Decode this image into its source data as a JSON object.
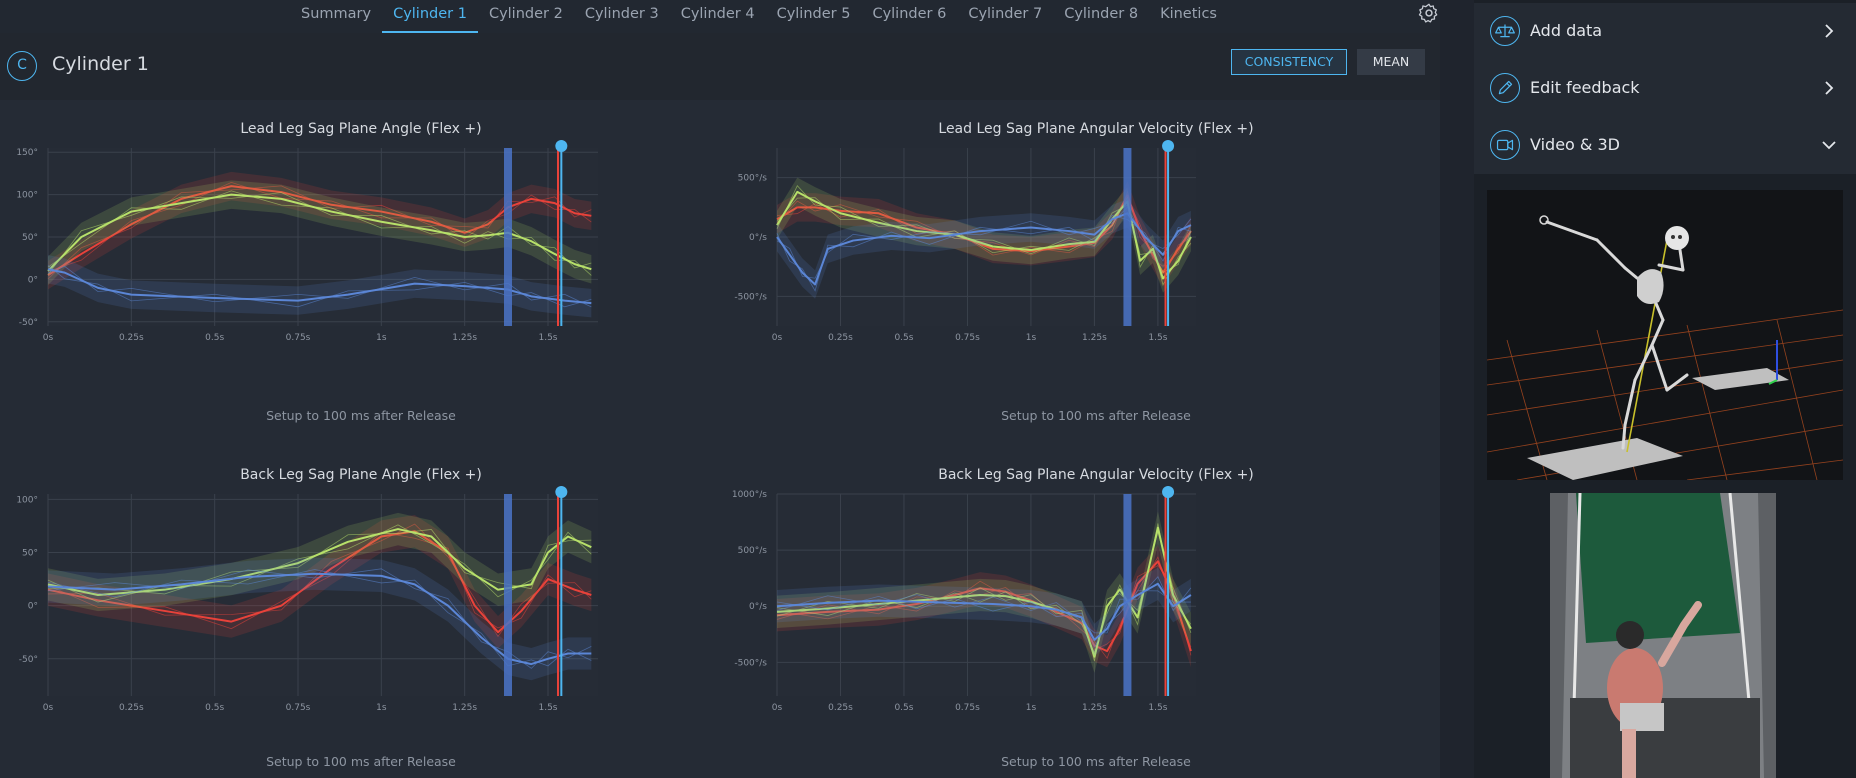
{
  "nav": {
    "tabs": [
      "Summary",
      "Cylinder 1",
      "Cylinder 2",
      "Cylinder 3",
      "Cylinder 4",
      "Cylinder 5",
      "Cylinder 6",
      "Cylinder 7",
      "Cylinder 8",
      "Kinetics"
    ],
    "active_tab": "Cylinder 1"
  },
  "header": {
    "badge": "C",
    "title": "Cylinder 1",
    "consistency_label": "CONSISTENCY",
    "mean_label": "MEAN"
  },
  "colors": {
    "accent": "#4eb6f0",
    "series_red": "#e8423a",
    "series_green": "#b7e06a",
    "series_blue": "#5b86d6"
  },
  "chart_data": [
    {
      "type": "line",
      "title": "Lead Leg Sag Plane Angle (Flex +)",
      "xlabel": "Setup to 100 ms after Release",
      "x_ticks": [
        "0s",
        "0.25s",
        "0.5s",
        "0.75s",
        "1s",
        "1.25s",
        "1.5s"
      ],
      "y_ticks": [
        "150°",
        "100°",
        "50°",
        "0°",
        "-50°"
      ],
      "xlim": [
        0,
        1.65
      ],
      "ylim": [
        -55,
        155
      ],
      "markers": [
        1.38,
        1.53,
        1.54
      ],
      "series": [
        {
          "color": "red",
          "x": [
            0,
            0.1,
            0.25,
            0.4,
            0.55,
            0.7,
            0.85,
            1.0,
            1.15,
            1.25,
            1.32,
            1.38,
            1.45,
            1.52,
            1.58,
            1.63
          ],
          "y": [
            5,
            30,
            65,
            95,
            110,
            103,
            88,
            80,
            68,
            55,
            65,
            85,
            95,
            90,
            78,
            75
          ]
        },
        {
          "color": "green",
          "x": [
            0,
            0.1,
            0.25,
            0.4,
            0.55,
            0.7,
            0.85,
            1.0,
            1.15,
            1.25,
            1.32,
            1.38,
            1.45,
            1.52,
            1.58,
            1.63
          ],
          "y": [
            10,
            50,
            80,
            90,
            100,
            95,
            80,
            68,
            58,
            50,
            52,
            55,
            45,
            30,
            18,
            12
          ]
        },
        {
          "color": "blue",
          "x": [
            0,
            0.05,
            0.15,
            0.25,
            0.5,
            0.75,
            0.9,
            1.1,
            1.25,
            1.38,
            1.45,
            1.55,
            1.63
          ],
          "y": [
            12,
            8,
            -10,
            -18,
            -22,
            -25,
            -18,
            -5,
            -8,
            -12,
            -20,
            -25,
            -28
          ]
        }
      ]
    },
    {
      "type": "line",
      "title": "Lead Leg Sag Plane Angular Velocity (Flex +)",
      "xlabel": "Setup to 100 ms after Release",
      "x_ticks": [
        "0s",
        "0.25s",
        "0.5s",
        "0.75s",
        "1s",
        "1.25s",
        "1.5s"
      ],
      "y_ticks": [
        "500°/s",
        "0°/s",
        "-500°/s"
      ],
      "xlim": [
        0,
        1.65
      ],
      "ylim": [
        -750,
        750
      ],
      "markers": [
        1.38,
        1.53,
        1.54
      ],
      "series": [
        {
          "color": "red",
          "x": [
            0,
            0.08,
            0.15,
            0.25,
            0.4,
            0.55,
            0.7,
            0.85,
            1.0,
            1.15,
            1.25,
            1.32,
            1.38,
            1.43,
            1.48,
            1.52,
            1.58,
            1.63
          ],
          "y": [
            150,
            250,
            250,
            220,
            200,
            80,
            20,
            -100,
            -120,
            -80,
            -50,
            100,
            350,
            50,
            -150,
            -300,
            -100,
            50
          ]
        },
        {
          "color": "green",
          "x": [
            0,
            0.08,
            0.15,
            0.25,
            0.4,
            0.55,
            0.7,
            0.85,
            1.0,
            1.15,
            1.25,
            1.32,
            1.38,
            1.43,
            1.48,
            1.52,
            1.58,
            1.63
          ],
          "y": [
            100,
            380,
            300,
            200,
            120,
            50,
            20,
            -80,
            -110,
            -60,
            -40,
            150,
            300,
            -200,
            -100,
            -350,
            -200,
            0
          ]
        },
        {
          "color": "blue",
          "x": [
            0,
            0.05,
            0.1,
            0.15,
            0.2,
            0.3,
            0.45,
            0.6,
            0.8,
            1.0,
            1.15,
            1.25,
            1.32,
            1.38,
            1.45,
            1.52,
            1.58,
            1.63
          ],
          "y": [
            0,
            -150,
            -300,
            -400,
            -100,
            -30,
            10,
            -10,
            50,
            80,
            50,
            20,
            150,
            200,
            0,
            -150,
            50,
            100
          ]
        }
      ]
    },
    {
      "type": "line",
      "title": "Back Leg Sag Plane Angle (Flex +)",
      "xlabel": "Setup to 100 ms after Release",
      "x_ticks": [
        "0s",
        "0.25s",
        "0.5s",
        "0.75s",
        "1s",
        "1.25s",
        "1.5s"
      ],
      "y_ticks": [
        "100°",
        "50°",
        "0°",
        "-50°"
      ],
      "xlim": [
        0,
        1.65
      ],
      "ylim": [
        -85,
        105
      ],
      "markers": [
        1.38,
        1.53,
        1.54
      ],
      "series": [
        {
          "color": "red",
          "x": [
            0,
            0.15,
            0.35,
            0.55,
            0.7,
            0.85,
            1.0,
            1.1,
            1.2,
            1.28,
            1.35,
            1.42,
            1.5,
            1.58,
            1.63
          ],
          "y": [
            15,
            5,
            -5,
            -15,
            0,
            35,
            65,
            70,
            50,
            0,
            -25,
            -5,
            25,
            15,
            10
          ]
        },
        {
          "color": "green",
          "x": [
            0,
            0.15,
            0.35,
            0.55,
            0.75,
            0.9,
            1.05,
            1.15,
            1.25,
            1.35,
            1.45,
            1.5,
            1.56,
            1.63
          ],
          "y": [
            20,
            10,
            15,
            25,
            40,
            60,
            72,
            65,
            35,
            15,
            20,
            50,
            65,
            55
          ]
        },
        {
          "color": "blue",
          "x": [
            0,
            0.2,
            0.4,
            0.6,
            0.8,
            1.0,
            1.1,
            1.2,
            1.3,
            1.38,
            1.45,
            1.5,
            1.56,
            1.63
          ],
          "y": [
            18,
            15,
            20,
            27,
            30,
            28,
            20,
            0,
            -30,
            -50,
            -55,
            -50,
            -45,
            -45
          ]
        }
      ]
    },
    {
      "type": "line",
      "title": "Back Leg Sag Plane Angular Velocity (Flex +)",
      "xlabel": "Setup to 100 ms after Release",
      "x_ticks": [
        "0s",
        "0.25s",
        "0.5s",
        "0.75s",
        "1s",
        "1.25s",
        "1.5s"
      ],
      "y_ticks": [
        "1000°/s",
        "500°/s",
        "0°/s",
        "-500°/s"
      ],
      "xlim": [
        0,
        1.65
      ],
      "ylim": [
        -800,
        1000
      ],
      "markers": [
        1.38,
        1.53,
        1.54
      ],
      "series": [
        {
          "color": "red",
          "x": [
            0,
            0.2,
            0.4,
            0.55,
            0.7,
            0.8,
            0.9,
            1.0,
            1.1,
            1.2,
            1.25,
            1.3,
            1.35,
            1.42,
            1.5,
            1.56,
            1.63
          ],
          "y": [
            -80,
            -50,
            -30,
            20,
            100,
            160,
            130,
            50,
            -50,
            -150,
            -350,
            -400,
            -200,
            200,
            400,
            100,
            -400
          ]
        },
        {
          "color": "green",
          "x": [
            0,
            0.2,
            0.4,
            0.55,
            0.7,
            0.8,
            0.9,
            1.0,
            1.1,
            1.2,
            1.25,
            1.3,
            1.35,
            1.42,
            1.5,
            1.56,
            1.63
          ],
          "y": [
            -50,
            -20,
            20,
            50,
            80,
            100,
            90,
            40,
            -30,
            -100,
            -450,
            0,
            150,
            -100,
            700,
            100,
            -200
          ]
        },
        {
          "color": "blue",
          "x": [
            0,
            0.2,
            0.4,
            0.55,
            0.7,
            0.85,
            1.0,
            1.1,
            1.2,
            1.25,
            1.3,
            1.35,
            1.42,
            1.5,
            1.56,
            1.63
          ],
          "y": [
            0,
            30,
            50,
            40,
            30,
            20,
            0,
            -30,
            -100,
            -300,
            -200,
            0,
            100,
            200,
            0,
            100
          ]
        }
      ]
    }
  ],
  "right_panel": {
    "items": [
      {
        "label": "Add data",
        "icon": "scale-icon",
        "chevron": "chevron-right-icon"
      },
      {
        "label": "Edit feedback",
        "icon": "pencil-icon",
        "chevron": "chevron-right-icon"
      },
      {
        "label": "Video & 3D",
        "icon": "video-icon",
        "chevron": "chevron-down-icon"
      }
    ]
  }
}
